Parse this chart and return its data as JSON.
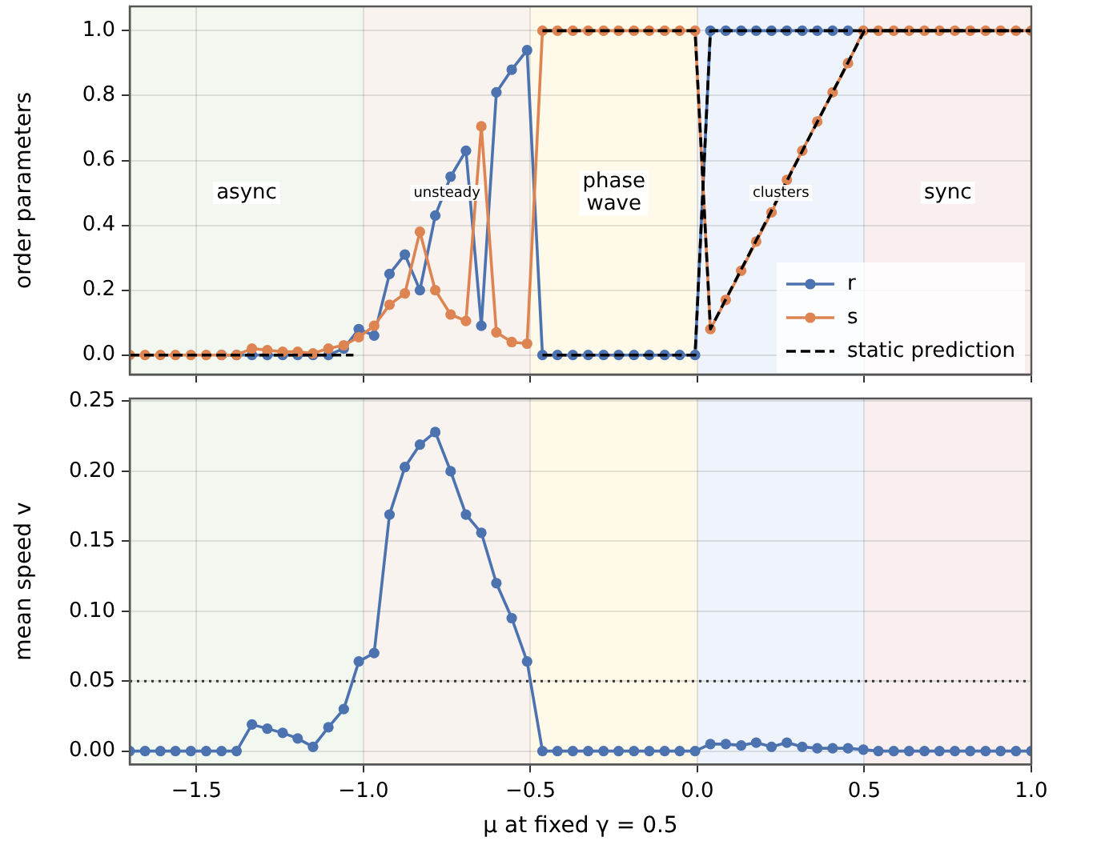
{
  "chart_data": [
    {
      "type": "line",
      "ylabel": "order parameters",
      "x": [
        -1.7,
        -1.654,
        -1.608,
        -1.563,
        -1.517,
        -1.471,
        -1.425,
        -1.38,
        -1.334,
        -1.288,
        -1.242,
        -1.197,
        -1.151,
        -1.105,
        -1.059,
        -1.014,
        -0.968,
        -0.922,
        -0.876,
        -0.831,
        -0.785,
        -0.739,
        -0.693,
        -0.647,
        -0.602,
        -0.556,
        -0.51,
        -0.464,
        -0.419,
        -0.373,
        -0.327,
        -0.281,
        -0.236,
        -0.19,
        -0.144,
        -0.098,
        -0.053,
        -0.007,
        0.039,
        0.085,
        0.131,
        0.176,
        0.222,
        0.268,
        0.314,
        0.359,
        0.405,
        0.451,
        0.497,
        0.542,
        0.588,
        0.634,
        0.68,
        0.725,
        0.771,
        0.817,
        0.863,
        0.908,
        0.954,
        1.0
      ],
      "series": [
        {
          "name": "r",
          "color": "#4c72b0",
          "values": [
            null,
            null,
            null,
            null,
            null,
            null,
            0,
            0,
            0,
            0,
            0,
            0,
            0,
            0,
            0.02,
            0.08,
            0.06,
            0.25,
            0.31,
            0.2,
            0.43,
            0.55,
            0.63,
            0.09,
            0.81,
            0.88,
            0.94,
            0,
            0,
            0,
            0,
            0,
            0,
            0,
            0,
            0,
            0,
            0,
            1,
            1,
            1,
            1,
            1,
            1,
            1,
            1,
            1,
            1,
            null,
            null,
            null,
            null,
            null,
            null,
            null,
            null,
            null,
            null,
            null,
            null
          ]
        },
        {
          "name": "s",
          "color": "#dd8452",
          "values": [
            0,
            0,
            0,
            0,
            0,
            0,
            0,
            0,
            0.02,
            0.015,
            0.01,
            0.01,
            0.005,
            0.02,
            0.03,
            0.055,
            0.09,
            0.155,
            0.19,
            0.38,
            0.2,
            0.125,
            0.105,
            0.705,
            0.07,
            0.04,
            0.035,
            1,
            1,
            1,
            1,
            1,
            1,
            1,
            1,
            1,
            1,
            1,
            0.08,
            0.17,
            0.26,
            0.35,
            0.44,
            0.54,
            0.63,
            0.72,
            0.81,
            0.9,
            1,
            1,
            1,
            1,
            1,
            1,
            1,
            1,
            1,
            1,
            1,
            1
          ]
        },
        {
          "name": "static prediction",
          "color": "#000000",
          "line_style": "dashed",
          "marker": "none",
          "x": [
            -0.464,
            -0.007,
            0.039,
            0.5,
            1.0
          ],
          "values": [
            1,
            1,
            0.08,
            1,
            1
          ]
        },
        {
          "color": "#000000",
          "line_style": "dashed",
          "marker": "none",
          "x": [
            -1.7,
            -1.03
          ],
          "values": [
            0,
            0
          ]
        },
        {
          "color": "#000000",
          "line_style": "dashed",
          "marker": "none",
          "x": [
            -0.464,
            -0.007,
            0.039,
            1.0
          ],
          "values": [
            0,
            0,
            1,
            1
          ]
        }
      ],
      "marker": "circle",
      "xlim": [
        -1.7,
        1.0
      ],
      "ylim": [
        -0.06,
        1.075
      ],
      "xticks": [
        {
          "value": -1.5,
          "label": null
        },
        {
          "value": -1.0,
          "label": null
        },
        {
          "value": -0.5,
          "label": null
        },
        {
          "value": 0,
          "label": null
        },
        {
          "value": 0.5,
          "label": null
        },
        {
          "value": 1.0,
          "label": null
        }
      ],
      "yticks": [
        {
          "value": 0,
          "label": "0.0"
        },
        {
          "value": 0.2,
          "label": "0.2"
        },
        {
          "value": 0.4,
          "label": "0.4"
        },
        {
          "value": 0.6,
          "label": "0.6"
        },
        {
          "value": 0.8,
          "label": "0.8"
        },
        {
          "value": 1.0,
          "label": "1.0"
        }
      ],
      "tick_labels": "y",
      "grid": true,
      "legend": "bottom right",
      "bands": [
        {
          "axis": "x",
          "from": -1.7,
          "to": -1.0,
          "label": "async",
          "color": "#f2f8f0"
        },
        {
          "axis": "x",
          "from": -1.0,
          "to": -0.5,
          "label": "unsteady",
          "color": "#f8f3ee"
        },
        {
          "axis": "x",
          "from": -0.5,
          "to": 0,
          "label": "phase\nwave",
          "color": "#fef9e8"
        },
        {
          "axis": "x",
          "from": 0,
          "to": 0.5,
          "label": "clusters",
          "color": "#eff3fb"
        },
        {
          "axis": "x",
          "from": 0.5,
          "to": 1.0,
          "label": "sync",
          "color": "#f9efef"
        }
      ]
    },
    {
      "type": "line",
      "ylabel": "mean speed v",
      "xlabel": "μ at fixed γ = 0.5",
      "x": [
        -1.7,
        -1.654,
        -1.608,
        -1.563,
        -1.517,
        -1.471,
        -1.425,
        -1.38,
        -1.334,
        -1.288,
        -1.242,
        -1.197,
        -1.151,
        -1.105,
        -1.059,
        -1.014,
        -0.968,
        -0.922,
        -0.876,
        -0.831,
        -0.785,
        -0.739,
        -0.693,
        -0.647,
        -0.602,
        -0.556,
        -0.51,
        -0.464,
        -0.419,
        -0.373,
        -0.327,
        -0.281,
        -0.236,
        -0.19,
        -0.144,
        -0.098,
        -0.053,
        -0.007,
        0.039,
        0.085,
        0.131,
        0.176,
        0.222,
        0.268,
        0.314,
        0.359,
        0.405,
        0.451,
        0.497,
        0.542,
        0.588,
        0.634,
        0.68,
        0.725,
        0.771,
        0.817,
        0.863,
        0.908,
        0.954,
        1.0
      ],
      "series": [
        {
          "color": "#4c72b0",
          "values": [
            0,
            0,
            0,
            0,
            0,
            0,
            0,
            0,
            0.019,
            0.016,
            0.013,
            0.009,
            0.003,
            0.017,
            0.03,
            0.064,
            0.07,
            0.169,
            0.203,
            0.219,
            0.228,
            0.2,
            0.169,
            0.156,
            0.12,
            0.095,
            0.064,
            0,
            0,
            0,
            0,
            0,
            0,
            0,
            0,
            0,
            0,
            0,
            0.005,
            0.005,
            0.004,
            0.006,
            0.003,
            0.006,
            0.003,
            0.002,
            0.002,
            0.002,
            0.001,
            0,
            0,
            0,
            0,
            0,
            0,
            0,
            0,
            0,
            0,
            0
          ]
        }
      ],
      "marker": "circle",
      "xlim": [
        -1.7,
        1.0
      ],
      "ylim": [
        -0.0095,
        0.252
      ],
      "xticks": [
        {
          "value": -1.5,
          "label": "−1.5"
        },
        {
          "value": -1.0,
          "label": "−1.0"
        },
        {
          "value": -0.5,
          "label": "−0.5"
        },
        {
          "value": 0,
          "label": "0.0"
        },
        {
          "value": 0.5,
          "label": "0.5"
        },
        {
          "value": 1.0,
          "label": "1.0"
        }
      ],
      "yticks": [
        {
          "value": 0,
          "label": "0.00"
        },
        {
          "value": 0.05,
          "label": "0.05"
        },
        {
          "value": 0.1,
          "label": "0.10"
        },
        {
          "value": 0.15,
          "label": "0.15"
        },
        {
          "value": 0.2,
          "label": "0.20"
        },
        {
          "value": 0.25,
          "label": "0.25"
        }
      ],
      "grid": true,
      "ref_lines": [
        {
          "axis": "y",
          "value": 0.05,
          "color": "#333333",
          "line_style": "dotted"
        }
      ],
      "bands": [
        {
          "axis": "x",
          "from": -1.7,
          "to": -1.0,
          "color": "#f2f8f0"
        },
        {
          "axis": "x",
          "from": -1.0,
          "to": -0.5,
          "color": "#f8f3ee"
        },
        {
          "axis": "x",
          "from": -0.5,
          "to": 0,
          "color": "#fef9e8"
        },
        {
          "axis": "x",
          "from": 0,
          "to": 0.5,
          "color": "#eff3fb"
        },
        {
          "axis": "x",
          "from": 0.5,
          "to": 1.0,
          "color": "#f9efef"
        }
      ]
    }
  ]
}
